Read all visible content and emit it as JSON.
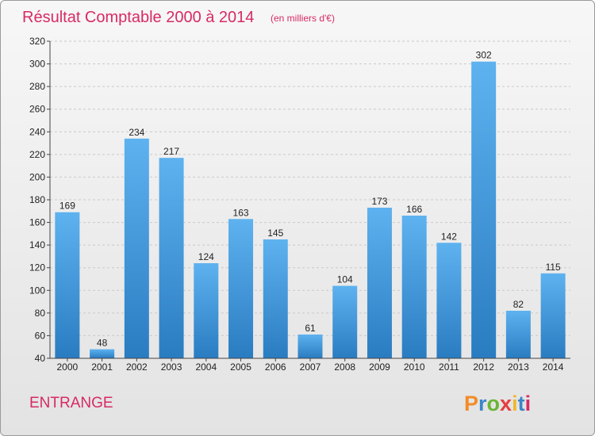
{
  "chart_data": {
    "type": "bar",
    "title": "Résultat Comptable 2000 à 2014",
    "subtitle": "(en milliers d'€)",
    "categories": [
      "2000",
      "2001",
      "2002",
      "2003",
      "2004",
      "2005",
      "2006",
      "2007",
      "2008",
      "2009",
      "2010",
      "2011",
      "2012",
      "2013",
      "2014"
    ],
    "values": [
      169,
      48,
      234,
      217,
      124,
      163,
      145,
      61,
      104,
      173,
      166,
      142,
      302,
      82,
      115
    ],
    "ylim": [
      40,
      320
    ],
    "yticks": [
      40,
      60,
      80,
      100,
      120,
      140,
      160,
      180,
      200,
      220,
      240,
      260,
      280,
      300,
      320
    ],
    "grid": true,
    "bar_color": "#3d93d6",
    "xlabel": "",
    "ylabel": ""
  },
  "commune": "ENTRANGE",
  "logo": {
    "text": "Proxiti",
    "letter_colors": [
      "#f28c28",
      "#3a86c8",
      "#6bb536",
      "#e53e3e",
      "#f2b62a",
      "#3a86c8",
      "#d72a64"
    ]
  }
}
